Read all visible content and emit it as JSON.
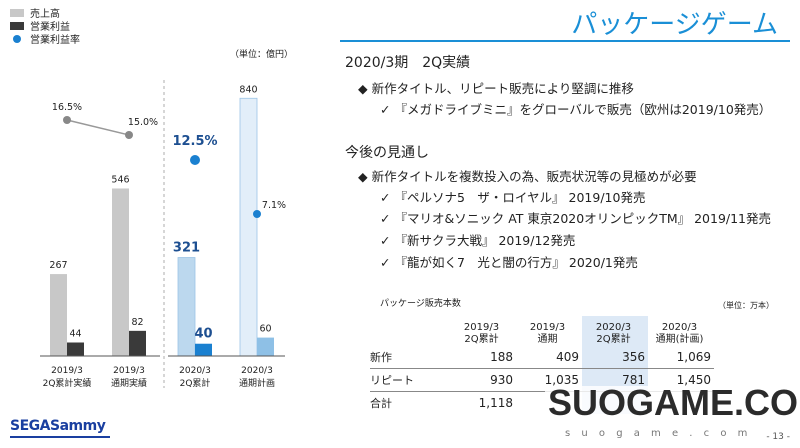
{
  "header": {
    "title": "パッケージゲーム"
  },
  "legend": [
    {
      "label": "売上高",
      "color": "#c8c8c8",
      "kind": "box"
    },
    {
      "label": "営業利益",
      "color": "#3a3a3a",
      "kind": "box"
    },
    {
      "label": "営業利益率",
      "color": "#1a80d0",
      "kind": "dot"
    }
  ],
  "chart_unit": "（単位：億円）",
  "chart_data": {
    "type": "bar",
    "categories": [
      "2019/3\n2Q累計実績",
      "2019/3\n通期実績",
      "2020/3\n2Q累計",
      "2020/3\n通期計画"
    ],
    "category_lines": [
      [
        "2019/3",
        "2Q累計実績"
      ],
      [
        "2019/3",
        "通期実績"
      ],
      [
        "2020/3",
        "2Q累計"
      ],
      [
        "2020/3",
        "通期計画"
      ]
    ],
    "series": [
      {
        "name": "売上高",
        "values": [
          267,
          546,
          321,
          840
        ],
        "colors": [
          "#c8c8c8",
          "#c8c8c8",
          "#bcd8ee",
          "#e2eef9"
        ]
      },
      {
        "name": "営業利益",
        "values": [
          44,
          82,
          40,
          60
        ],
        "colors": [
          "#3a3a3a",
          "#3a3a3a",
          "#1a80d0",
          "#8ec0e6"
        ]
      },
      {
        "name": "営業利益率",
        "values": [
          16.5,
          15.0,
          12.5,
          7.1
        ],
        "labels": [
          "16.5%",
          "15.0%",
          "12.5%",
          "7.1%"
        ]
      }
    ],
    "ylim": [
      0,
      880
    ]
  },
  "section1": {
    "heading": "2020/3期　2Q実績",
    "bullet": "新作タイトル、リピート販売により堅調に推移",
    "checks": [
      "『メガドライブミニ』をグローバルで販売（欧州は2019/10発売）"
    ]
  },
  "section2": {
    "heading": "今後の見通し",
    "bullet": "新作タイトルを複数投入の為、販売状況等の見極めが必要",
    "checks": [
      "『ペルソナ5　ザ・ロイヤル』 2019/10発売",
      "『マリオ&ソニック AT 東京2020オリンピックTM』 2019/11発売",
      "『新サクラ大戦』 2019/12発売",
      "『龍が如く7　光と闇の行方』 2020/1発売"
    ]
  },
  "table": {
    "caption": "パッケージ販売本数",
    "unit": "（単位：万本）",
    "headers": [
      [
        "2019/3",
        "2Q累計"
      ],
      [
        "2019/3",
        "通期"
      ],
      [
        "2020/3",
        "2Q累計"
      ],
      [
        "2020/3",
        "通期(計画)"
      ]
    ],
    "rows": [
      {
        "label": "新作",
        "values": [
          "188",
          "409",
          "356",
          "1,069"
        ]
      },
      {
        "label": "リピート",
        "values": [
          "930",
          "1,035",
          "781",
          "1,450"
        ]
      },
      {
        "label": "合計",
        "values": [
          "1,118",
          "",
          "",
          ""
        ]
      }
    ]
  },
  "footer": {
    "logo_sega": "SEGA",
    "logo_sammy": "Sammy",
    "page": "- 13 -"
  },
  "watermark": {
    "main": "SUOGAME.COM",
    "sub": "s u o g a m e . c o m"
  }
}
